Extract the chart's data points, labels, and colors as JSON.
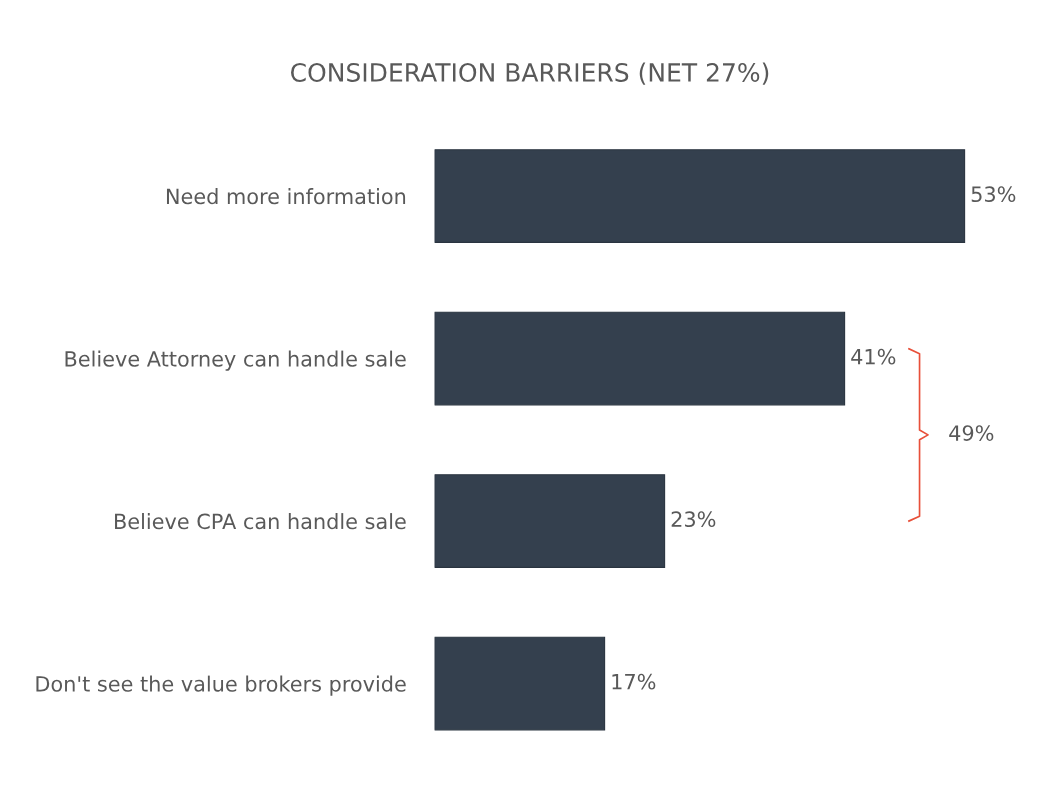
{
  "chart_data": {
    "type": "bar",
    "orientation": "horizontal",
    "title": "CONSIDERATION BARRIERS (NET 27%)",
    "categories": [
      "Need more information",
      "Believe Attorney can handle sale",
      "Believe CPA can handle sale",
      "Don't see the value brokers provide"
    ],
    "values": [
      53,
      41,
      23,
      17
    ],
    "value_labels": [
      "53%",
      "41%",
      "23%",
      "17%"
    ],
    "color": "#34404e",
    "annotations": [
      "49%"
    ]
  }
}
